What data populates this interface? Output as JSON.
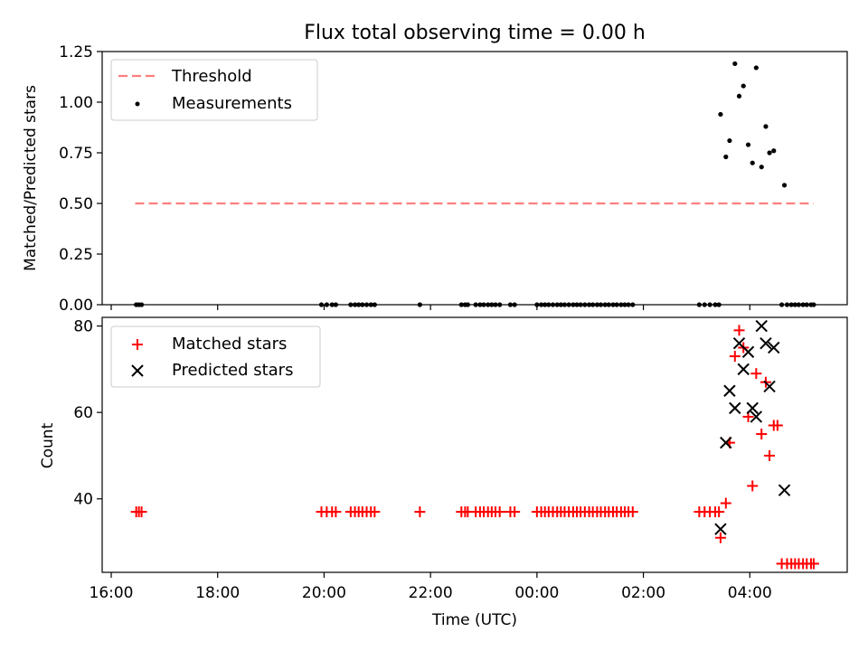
{
  "chart_data": [
    {
      "type": "scatter",
      "title": "Flux total observing time = 0.00 h",
      "xlabel": "",
      "ylabel": "Matched/Predicted stars",
      "xlim": [
        15.83,
        29.83
      ],
      "ylim": [
        0,
        1.25
      ],
      "yticks": [
        0,
        0.25,
        0.5,
        0.75,
        1.0,
        1.25
      ],
      "ytick_labels": [
        "0.00",
        "0.25",
        "0.50",
        "0.75",
        "1.00",
        "1.25"
      ],
      "legend_position": "top-left",
      "threshold": {
        "name": "Threshold",
        "value": 0.5,
        "x_range": [
          16.45,
          29.2
        ],
        "color": "#ff7f7f"
      },
      "series": [
        {
          "name": "Measurements",
          "color": "#000000",
          "x": [
            16.47,
            16.52,
            16.57,
            19.95,
            20.05,
            20.15,
            20.22,
            20.5,
            20.58,
            20.65,
            20.72,
            20.8,
            20.88,
            20.95,
            21.8,
            22.58,
            22.65,
            22.7,
            22.85,
            22.93,
            23.0,
            23.08,
            23.15,
            23.22,
            23.3,
            23.5,
            23.58,
            24.0,
            24.08,
            24.15,
            24.22,
            24.3,
            24.38,
            24.45,
            24.52,
            24.6,
            24.68,
            24.75,
            24.82,
            24.9,
            24.98,
            25.05,
            25.13,
            25.2,
            25.28,
            25.35,
            25.43,
            25.5,
            25.58,
            25.65,
            25.72,
            25.8,
            27.05,
            27.15,
            27.25,
            27.35,
            27.42,
            28.6,
            28.7,
            28.78,
            28.85,
            28.92,
            29.0,
            29.07,
            29.15,
            29.2,
            27.45,
            27.55,
            27.62,
            27.72,
            27.8,
            27.88,
            27.97,
            28.05,
            28.12,
            28.22,
            28.3,
            28.37,
            28.45,
            28.65
          ],
          "y": [
            0,
            0,
            0,
            0,
            0,
            0,
            0,
            0,
            0,
            0,
            0,
            0,
            0,
            0,
            0,
            0,
            0,
            0,
            0,
            0,
            0,
            0,
            0,
            0,
            0,
            0,
            0,
            0,
            0,
            0,
            0,
            0,
            0,
            0,
            0,
            0,
            0,
            0,
            0,
            0,
            0,
            0,
            0,
            0,
            0,
            0,
            0,
            0,
            0,
            0,
            0,
            0,
            0,
            0,
            0,
            0,
            0,
            0,
            0,
            0,
            0,
            0,
            0,
            0,
            0,
            0,
            0.94,
            0.73,
            0.81,
            1.19,
            1.03,
            1.08,
            0.79,
            0.7,
            1.17,
            0.68,
            0.88,
            0.75,
            0.76,
            0.59
          ]
        }
      ]
    },
    {
      "type": "scatter",
      "title": "",
      "xlabel": "Time (UTC)",
      "ylabel": "Count",
      "xlim": [
        15.83,
        29.83
      ],
      "ylim": [
        23,
        82
      ],
      "yticks": [
        40,
        60,
        80
      ],
      "ytick_labels": [
        "40",
        "60",
        "80"
      ],
      "xticks": [
        16,
        18,
        20,
        22,
        24,
        26,
        28
      ],
      "xtick_labels": [
        "16:00",
        "18:00",
        "20:00",
        "22:00",
        "00:00",
        "02:00",
        "04:00"
      ],
      "legend_position": "top-left",
      "series": [
        {
          "name": "Matched stars",
          "marker": "plus",
          "color": "#ff0000",
          "x": [
            16.47,
            16.52,
            16.57,
            19.95,
            20.05,
            20.15,
            20.22,
            20.5,
            20.58,
            20.65,
            20.72,
            20.8,
            20.88,
            20.95,
            21.8,
            22.58,
            22.65,
            22.7,
            22.85,
            22.93,
            23.0,
            23.08,
            23.15,
            23.22,
            23.3,
            23.5,
            23.58,
            24.0,
            24.08,
            24.15,
            24.22,
            24.3,
            24.38,
            24.45,
            24.52,
            24.6,
            24.68,
            24.75,
            24.82,
            24.9,
            24.98,
            25.05,
            25.13,
            25.2,
            25.28,
            25.35,
            25.43,
            25.5,
            25.58,
            25.65,
            25.72,
            25.8,
            27.05,
            27.15,
            27.25,
            27.35,
            27.42,
            27.45,
            27.55,
            27.62,
            27.72,
            27.8,
            27.88,
            27.97,
            28.05,
            28.12,
            28.22,
            28.3,
            28.37,
            28.45,
            28.52,
            28.6,
            28.7,
            28.78,
            28.85,
            28.92,
            29.0,
            29.07,
            29.15,
            29.2
          ],
          "y": [
            37,
            37,
            37,
            37,
            37,
            37,
            37,
            37,
            37,
            37,
            37,
            37,
            37,
            37,
            37,
            37,
            37,
            37,
            37,
            37,
            37,
            37,
            37,
            37,
            37,
            37,
            37,
            37,
            37,
            37,
            37,
            37,
            37,
            37,
            37,
            37,
            37,
            37,
            37,
            37,
            37,
            37,
            37,
            37,
            37,
            37,
            37,
            37,
            37,
            37,
            37,
            37,
            37,
            37,
            37,
            37,
            37,
            31,
            39,
            53,
            73,
            79,
            75,
            59,
            43,
            69,
            55,
            67,
            50,
            57,
            57,
            25,
            25,
            25,
            25,
            25,
            25,
            25,
            25,
            25
          ]
        },
        {
          "name": "Predicted stars",
          "marker": "x",
          "color": "#000000",
          "x": [
            27.45,
            27.55,
            27.62,
            27.72,
            27.8,
            27.88,
            27.97,
            28.05,
            28.12,
            28.22,
            28.3,
            28.37,
            28.45,
            28.65
          ],
          "y": [
            33,
            53,
            65,
            61,
            76,
            70,
            74,
            61,
            59,
            80,
            76,
            66,
            75,
            42
          ]
        }
      ]
    }
  ]
}
